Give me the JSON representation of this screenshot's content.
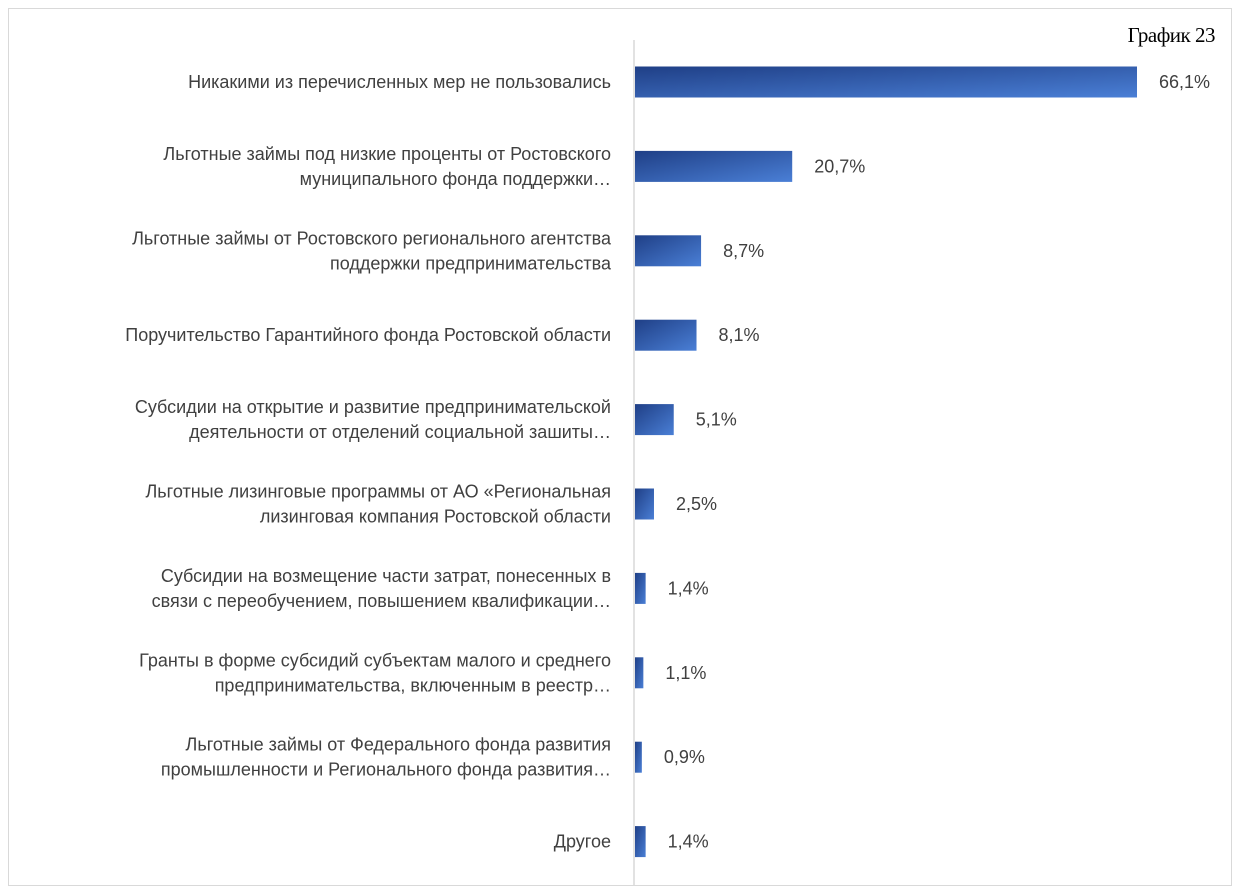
{
  "caption": "График 23",
  "chart_data": {
    "type": "bar",
    "orientation": "horizontal",
    "categories": [
      [
        "Никакими из перечисленных мер не пользовались"
      ],
      [
        "Льготные займы под низкие проценты от Ростовского",
        "муниципального фонда поддержки…"
      ],
      [
        "Льготные займы от Ростовского регионального агентства",
        "поддержки предпринимательства"
      ],
      [
        "Поручительство Гарантийного фонда Ростовской области"
      ],
      [
        "Субсидии на открытие и развитие предпринимательской",
        "деятельности от отделений социальной зашиты…"
      ],
      [
        "Льготные лизинговые программы от АО «Региональная",
        "лизинговая компания Ростовской области"
      ],
      [
        "Субсидии на возмещение части затрат, понесенных в",
        "связи с переобучением, повышением квалификации…"
      ],
      [
        "Гранты в форме субсидий субъектам малого и среднего",
        "предпринимательства, включенным в реестр…"
      ],
      [
        "Льготные займы от Федерального фонда развития",
        "промышленности и Регионального фонда развития…"
      ],
      [
        "Другое"
      ]
    ],
    "values": [
      66.1,
      20.7,
      8.7,
      8.1,
      5.1,
      2.5,
      1.4,
      1.1,
      0.9,
      1.4
    ],
    "value_labels": [
      "66,1%",
      "20,7%",
      "8,7%",
      "8,1%",
      "5,1%",
      "2,5%",
      "1,4%",
      "1,1%",
      "0,9%",
      "1,4%"
    ],
    "unit": "%",
    "xlim": [
      0,
      66.1
    ],
    "grid": false,
    "legend": "none",
    "colors": {
      "bar_gradient_dark": "#1f3f86",
      "bar_gradient_light": "#4a7fd6",
      "axis": "#d9d9d9",
      "text": "#404040"
    }
  }
}
